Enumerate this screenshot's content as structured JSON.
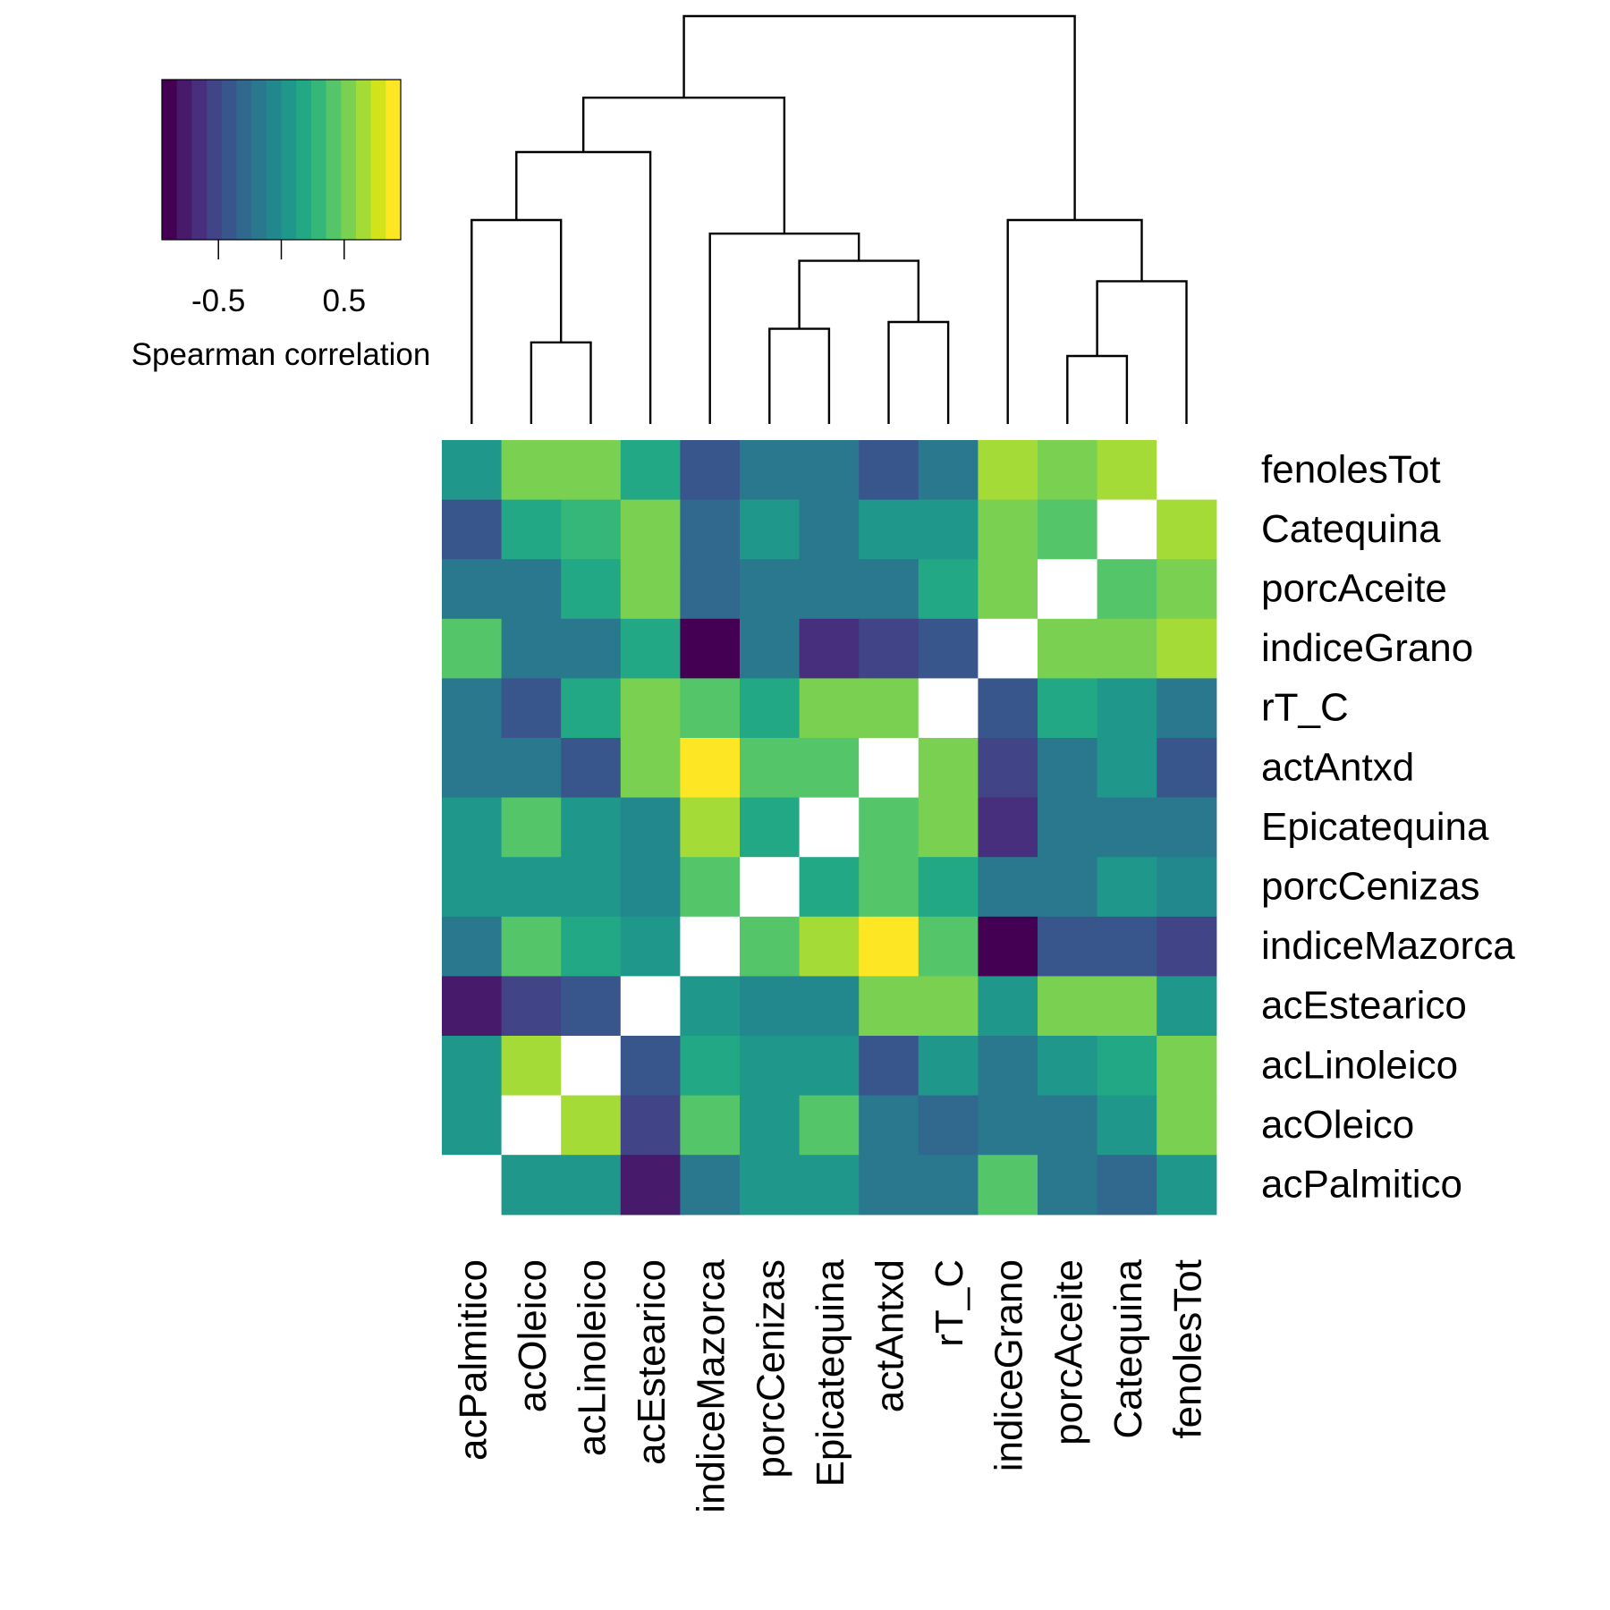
{
  "chart_data": {
    "type": "heatmap",
    "title": "",
    "legend": {
      "title": "Spearman correlation",
      "tick_labels": [
        "-0.5",
        "0.5"
      ],
      "tick_values": [
        -0.5,
        0.5
      ],
      "range": [
        -0.95,
        0.95
      ],
      "colors": [
        "#440154",
        "#481a6c",
        "#472f7d",
        "#414487",
        "#39568c",
        "#31688e",
        "#2a788e",
        "#23888e",
        "#1f988b",
        "#22a884",
        "#35b779",
        "#54c568",
        "#7ad151",
        "#a5db36",
        "#d2e21b",
        "#fde725"
      ],
      "placement": "top-left"
    },
    "labels": [
      "acPalmitico",
      "acOleico",
      "acLinoleico",
      "acEstearico",
      "indiceMazorca",
      "porcCenizas",
      "Epicatequina",
      "actAntxd",
      "rT_C",
      "indiceGrano",
      "porcAceite",
      "Catequina",
      "fenolesTot"
    ],
    "row_labels_top_to_bottom": [
      "fenolesTot",
      "Catequina",
      "porcAceite",
      "indiceGrano",
      "rT_C",
      "actAntxd",
      "Epicatequina",
      "porcCenizas",
      "indiceMazorca",
      "acEstearico",
      "acLinoleico",
      "acOleico",
      "acPalmitico"
    ],
    "matrix": [
      [
        null,
        0.0,
        0.1,
        -0.8,
        -0.2,
        0.1,
        0.1,
        -0.2,
        -0.2,
        0.4,
        -0.2,
        -0.35,
        0.0
      ],
      [
        0.0,
        null,
        0.7,
        -0.55,
        0.4,
        0.1,
        0.4,
        -0.2,
        -0.35,
        -0.2,
        -0.2,
        0.1,
        0.55
      ],
      [
        0.1,
        0.7,
        null,
        -0.4,
        0.2,
        0.1,
        0.1,
        -0.4,
        0.1,
        -0.2,
        0.1,
        0.2,
        0.55
      ],
      [
        -0.8,
        -0.55,
        -0.4,
        null,
        0.1,
        -0.1,
        -0.1,
        0.55,
        0.55,
        0.1,
        0.55,
        0.55,
        0.1
      ],
      [
        -0.2,
        0.4,
        0.2,
        0.1,
        null,
        0.4,
        0.7,
        0.85,
        0.4,
        -0.95,
        -0.4,
        -0.4,
        -0.55
      ],
      [
        0.1,
        0.1,
        0.1,
        -0.1,
        0.4,
        null,
        0.2,
        0.4,
        0.2,
        -0.2,
        -0.2,
        0.0,
        -0.1
      ],
      [
        0.1,
        0.4,
        0.1,
        -0.1,
        0.7,
        0.2,
        null,
        0.4,
        0.55,
        -0.7,
        -0.2,
        -0.2,
        -0.2
      ],
      [
        -0.2,
        -0.2,
        -0.4,
        0.55,
        0.85,
        0.4,
        0.4,
        null,
        0.55,
        -0.55,
        -0.2,
        0.0,
        -0.4
      ],
      [
        -0.2,
        -0.4,
        0.2,
        0.55,
        0.4,
        0.2,
        0.55,
        0.55,
        null,
        -0.4,
        0.2,
        0.0,
        -0.2
      ],
      [
        0.4,
        -0.2,
        -0.2,
        0.2,
        -0.95,
        -0.2,
        -0.7,
        -0.55,
        -0.4,
        null,
        0.55,
        0.55,
        0.65
      ],
      [
        -0.2,
        -0.2,
        0.2,
        0.55,
        -0.3,
        -0.2,
        -0.2,
        -0.2,
        0.2,
        0.55,
        null,
        0.4,
        0.55
      ],
      [
        -0.4,
        0.2,
        0.3,
        0.55,
        -0.3,
        0.0,
        -0.2,
        0.0,
        0.0,
        0.55,
        0.4,
        null,
        0.65
      ],
      [
        0.0,
        0.55,
        0.55,
        0.2,
        -0.4,
        -0.2,
        -0.2,
        -0.4,
        -0.2,
        0.65,
        0.55,
        0.65,
        null
      ]
    ],
    "dendrogram": [
      {
        "left": 1,
        "right": 2,
        "height": 0.6
      },
      {
        "left": 0,
        "right": [
          1,
          2
        ],
        "height": 1.5
      },
      {
        "left": [
          0,
          1,
          2
        ],
        "right": 3,
        "height": 2.0
      },
      {
        "left": 5,
        "right": 6,
        "height": 0.7
      },
      {
        "left": 7,
        "right": 8,
        "height": 0.75
      },
      {
        "left": [
          5,
          6
        ],
        "right": [
          7,
          8
        ],
        "height": 1.2
      },
      {
        "left": 4,
        "right": [
          5,
          6,
          7,
          8
        ],
        "height": 1.4
      },
      {
        "left": [
          0,
          1,
          2,
          3
        ],
        "right": [
          4,
          5,
          6,
          7,
          8
        ],
        "height": 2.4
      },
      {
        "left": 10,
        "right": 11,
        "height": 0.5
      },
      {
        "left": [
          10,
          11
        ],
        "right": 12,
        "height": 1.05
      },
      {
        "left": 9,
        "right": [
          10,
          11,
          12
        ],
        "height": 1.5
      },
      {
        "left": [
          0,
          1,
          2,
          3,
          4,
          5,
          6,
          7,
          8
        ],
        "right": [
          9,
          10,
          11,
          12
        ],
        "height": 3.0
      }
    ],
    "dendrogram_max_height": 3.0,
    "grid": false
  }
}
